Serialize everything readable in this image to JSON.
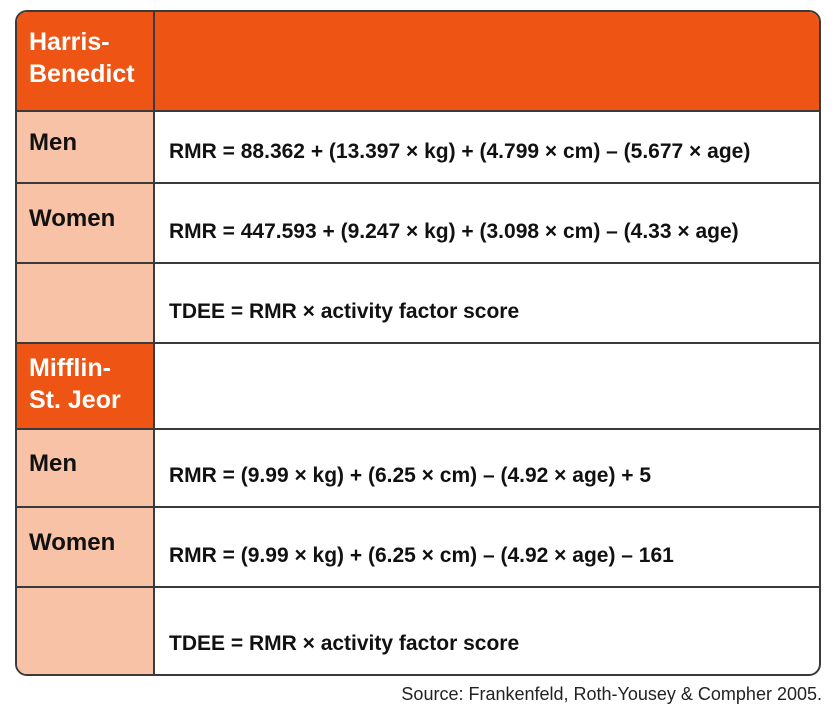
{
  "sections": [
    {
      "name": "Harris-\nBenedict",
      "name_line1": "Harris-",
      "name_line2": "Benedict",
      "rows": [
        {
          "label": "Men",
          "formula": "RMR = 88.362 + (13.397 × kg) + (4.799 × cm) – (5.677 × age)"
        },
        {
          "label": "Women",
          "formula": "RMR = 447.593 + (9.247 × kg) + (3.098 × cm) – (4.33 × age)"
        },
        {
          "label": "",
          "formula": "TDEE = RMR × activity factor score"
        }
      ]
    },
    {
      "name_line1": "Mifflin-",
      "name_line2": "St. Jeor",
      "rows": [
        {
          "label": "Men",
          "formula": "RMR = (9.99 × kg) + (6.25 × cm) – (4.92 × age) + 5"
        },
        {
          "label": "Women",
          "formula": "RMR = (9.99 × kg) + (6.25 × cm) – (4.92 × age) – 161"
        },
        {
          "label": "",
          "formula": "TDEE = RMR × activity factor score"
        }
      ]
    }
  ],
  "source": "Source: Frankenfeld, Roth-Yousey & Compher 2005.",
  "colors": {
    "header": "#ee5414",
    "label_bg": "#f7c2a6",
    "border": "#3a3a3a"
  }
}
